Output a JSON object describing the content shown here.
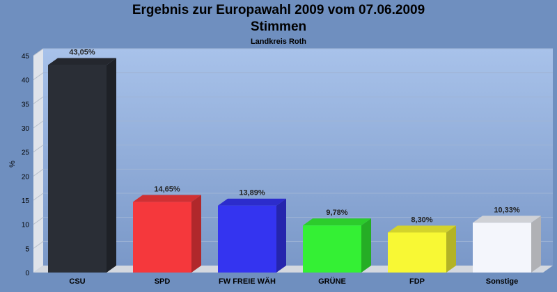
{
  "chart_data": {
    "type": "bar",
    "title": "Ergebnis zur Europawahl 2009 vom 07.06.2009",
    "subtitle": "Stimmen",
    "caption": "Landkreis Roth",
    "ylabel": "%",
    "ylim": [
      0,
      45
    ],
    "yticks": [
      0,
      5,
      10,
      15,
      20,
      25,
      30,
      35,
      40,
      45
    ],
    "categories": [
      "CSU",
      "SPD",
      "FW FREIE WÄH",
      "GRÜNE",
      "FDP",
      "Sonstige"
    ],
    "values": [
      43.05,
      14.65,
      13.89,
      9.78,
      8.3,
      10.33
    ],
    "value_labels": [
      "43,05%",
      "14,65%",
      "13,89%",
      "9,78%",
      "8,30%",
      "10,33%"
    ],
    "colors": [
      "#2a2e36",
      "#f5383c",
      "#3434f0",
      "#34f034",
      "#f8f834",
      "#f4f6fc"
    ],
    "grid": true
  }
}
